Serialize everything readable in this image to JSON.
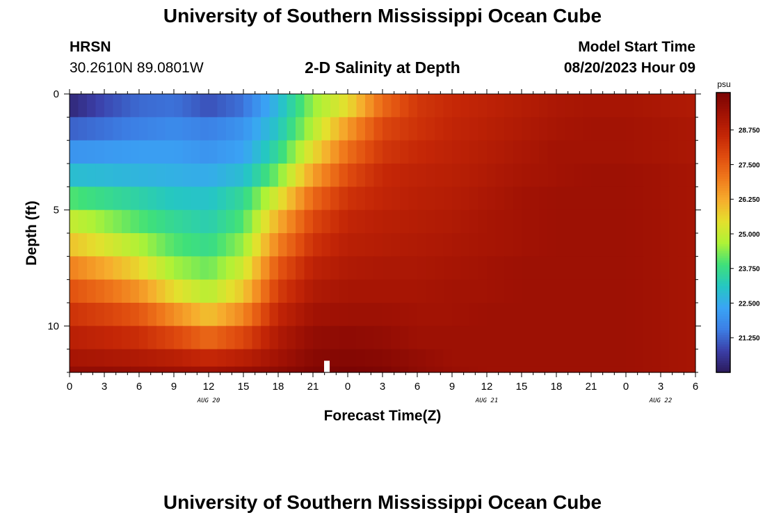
{
  "header": {
    "title": "University of Southern Mississippi Ocean Cube",
    "station": "HRSN",
    "coords": "30.2610N  89.0801W",
    "subtitle": "2-D Salinity at Depth",
    "model_start_label": "Model Start Time",
    "model_start_value": "08/20/2023 Hour 09"
  },
  "footer": {
    "title": "University of Southern Mississippi Ocean Cube"
  },
  "chart_data": {
    "type": "heatmap",
    "title": "2-D Salinity at Depth",
    "xlabel": "Forecast Time(Z)",
    "ylabel": "Depth (ft)",
    "x_ticks": [
      "0",
      "3",
      "6",
      "9",
      "12",
      "15",
      "18",
      "21",
      "0",
      "3",
      "6",
      "9",
      "12",
      "15",
      "18",
      "21",
      "0",
      "3",
      "6"
    ],
    "x_day_labels": [
      {
        "text": "AUG 20",
        "x_hours": 12
      },
      {
        "text": "AUG 21",
        "x_hours": 36
      },
      {
        "text": "AUG 22",
        "x_hours": 51
      }
    ],
    "xlim_hours": [
      0,
      54
    ],
    "y_ticks": [
      "0",
      "5",
      "10"
    ],
    "y_tick_values": [
      0,
      5,
      10
    ],
    "ylim": [
      0,
      12
    ],
    "colorbar": {
      "unit": "psu",
      "labels": [
        "28.750",
        "27.500",
        "26.250",
        "25.000",
        "23.750",
        "22.500",
        "21.250"
      ],
      "label_values": [
        28.75,
        27.5,
        26.25,
        25.0,
        23.75,
        22.5,
        21.25
      ],
      "range": [
        20.0,
        30.1
      ]
    },
    "depth_layers_ft": [
      0.5,
      1.5,
      2.5,
      3.5,
      4.5,
      5.5,
      6.5,
      7.5,
      8.5,
      9.5,
      10.5,
      11.5,
      12.0
    ],
    "time_hours": [
      0,
      3,
      6,
      9,
      12,
      15,
      18,
      21,
      24,
      27,
      30,
      33,
      36,
      39,
      42,
      45,
      48,
      51,
      54
    ],
    "salinity": [
      [
        20.3,
        20.9,
        21.3,
        21.4,
        21.0,
        21.4,
        22.8,
        24.5,
        25.5,
        27.3,
        28.2,
        28.5,
        28.7,
        28.9,
        29.1,
        29.2,
        29.2,
        29.1,
        29.0
      ],
      [
        21.2,
        21.4,
        21.6,
        21.8,
        21.6,
        22.0,
        23.1,
        24.8,
        26.5,
        27.9,
        28.3,
        28.6,
        28.8,
        29.0,
        29.2,
        29.3,
        29.3,
        29.2,
        29.1
      ],
      [
        22.0,
        22.1,
        22.2,
        22.2,
        22.0,
        22.3,
        23.6,
        25.5,
        27.2,
        28.2,
        28.5,
        28.7,
        28.9,
        29.1,
        29.3,
        29.3,
        29.3,
        29.2,
        29.1
      ],
      [
        22.9,
        22.8,
        22.7,
        22.6,
        22.5,
        22.9,
        24.3,
        26.4,
        27.8,
        28.5,
        28.7,
        28.8,
        29.0,
        29.2,
        29.3,
        29.4,
        29.4,
        29.3,
        29.2
      ],
      [
        24.0,
        23.7,
        23.4,
        23.1,
        23.0,
        23.6,
        25.3,
        27.3,
        28.3,
        28.6,
        28.8,
        28.9,
        29.1,
        29.3,
        29.4,
        29.4,
        29.4,
        29.3,
        29.2
      ],
      [
        25.0,
        24.5,
        24.0,
        23.6,
        23.3,
        24.0,
        26.2,
        27.9,
        28.6,
        28.8,
        28.9,
        29.0,
        29.2,
        29.3,
        29.4,
        29.4,
        29.4,
        29.3,
        29.2
      ],
      [
        25.9,
        25.3,
        24.7,
        24.0,
        23.7,
        24.5,
        26.9,
        28.3,
        28.8,
        28.9,
        29.0,
        29.1,
        29.2,
        29.3,
        29.4,
        29.4,
        29.4,
        29.3,
        29.2
      ],
      [
        26.9,
        26.3,
        25.6,
        24.6,
        24.2,
        25.1,
        27.6,
        28.7,
        29.0,
        29.1,
        29.1,
        29.2,
        29.3,
        29.4,
        29.4,
        29.4,
        29.4,
        29.3,
        29.2
      ],
      [
        27.7,
        27.2,
        26.6,
        25.5,
        24.8,
        25.8,
        28.1,
        29.0,
        29.2,
        29.2,
        29.2,
        29.3,
        29.3,
        29.4,
        29.4,
        29.4,
        29.4,
        29.3,
        29.2
      ],
      [
        28.3,
        28.0,
        27.6,
        26.7,
        25.9,
        26.8,
        28.6,
        29.3,
        29.4,
        29.4,
        29.3,
        29.3,
        29.4,
        29.4,
        29.4,
        29.4,
        29.4,
        29.3,
        29.2
      ],
      [
        28.8,
        28.6,
        28.4,
        27.9,
        27.3,
        27.9,
        29.0,
        29.6,
        29.7,
        29.6,
        29.4,
        29.4,
        29.4,
        29.4,
        29.4,
        29.4,
        29.4,
        29.3,
        29.2
      ],
      [
        29.2,
        29.1,
        29.0,
        28.8,
        28.5,
        28.8,
        29.3,
        29.8,
        29.9,
        29.8,
        29.6,
        29.4,
        29.4,
        29.4,
        29.4,
        29.4,
        29.4,
        29.3,
        29.2
      ],
      [
        29.6,
        29.6,
        29.5,
        29.4,
        29.3,
        29.5,
        29.7,
        30.0,
        30.1,
        30.0,
        29.7,
        29.5,
        29.4,
        29.4,
        29.4,
        29.4,
        29.4,
        29.3,
        29.2
      ]
    ],
    "marker_hours": 22.2,
    "colors": {
      "stops": [
        "#2b1a5b",
        "#3b3fa8",
        "#3c7fe5",
        "#3aa4f5",
        "#25c7c2",
        "#3fe07a",
        "#aef236",
        "#e4e02d",
        "#f6ad2d",
        "#f07a1c",
        "#e04d0f",
        "#c42606",
        "#a11204",
        "#7a0403"
      ]
    }
  }
}
